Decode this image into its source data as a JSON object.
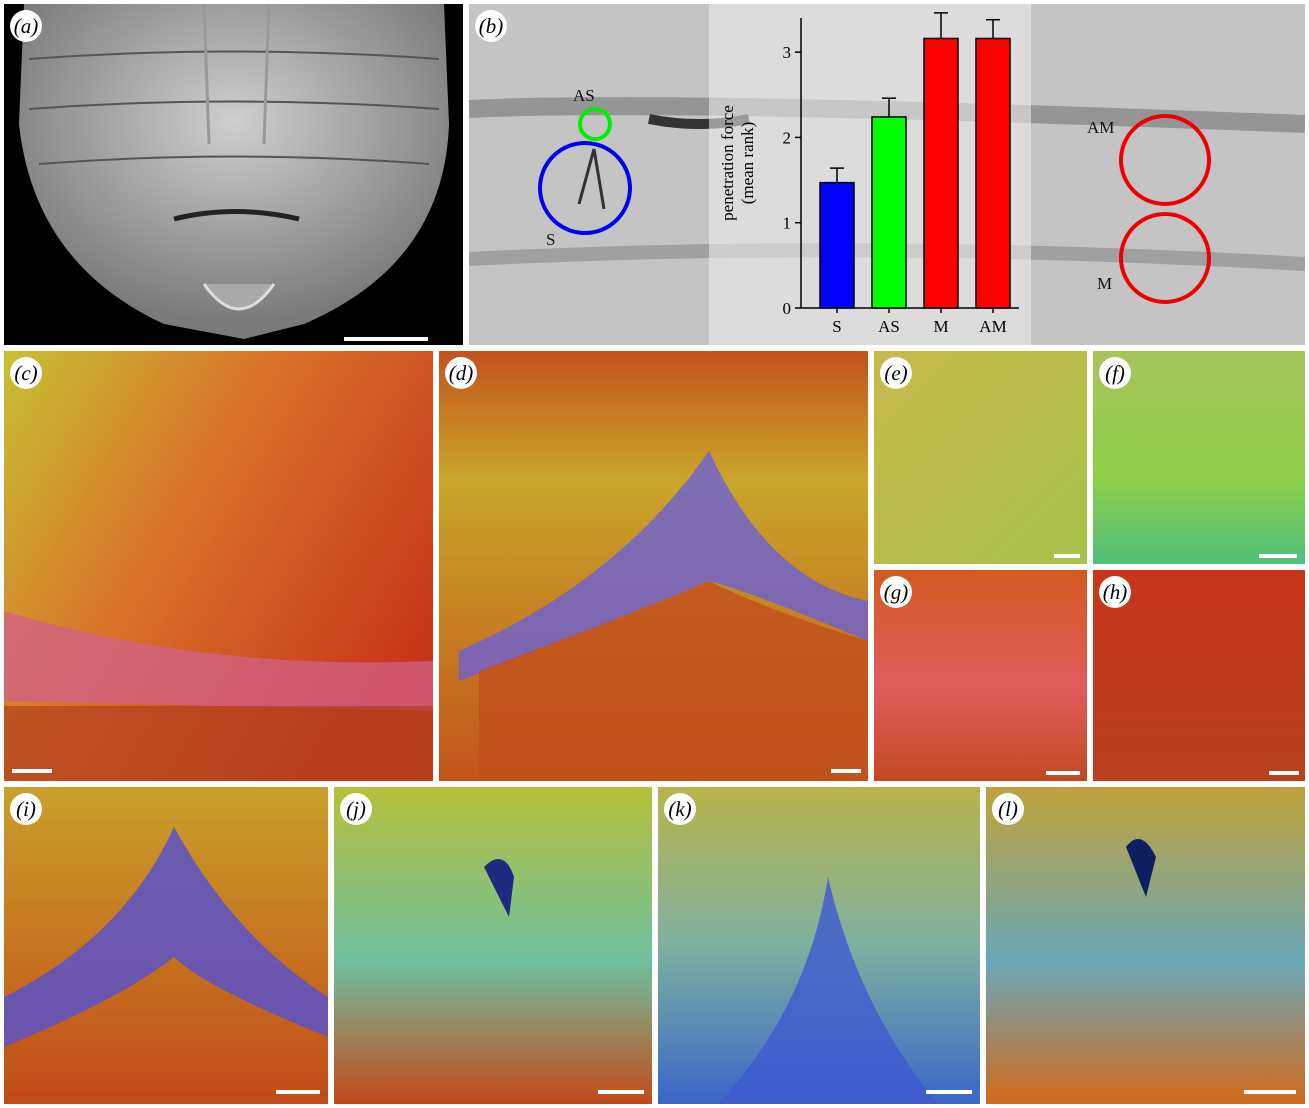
{
  "panels": {
    "a": {
      "label": "(a)"
    },
    "b": {
      "label": "(b)"
    },
    "c": {
      "label": "(c)"
    },
    "d": {
      "label": "(d)"
    },
    "e": {
      "label": "(e)"
    },
    "f": {
      "label": "(f)"
    },
    "g": {
      "label": "(g)"
    },
    "h": {
      "label": "(h)"
    },
    "i": {
      "label": "(i)"
    },
    "j": {
      "label": "(j)"
    },
    "k": {
      "label": "(k)"
    },
    "l": {
      "label": "(l)"
    }
  },
  "annotations": {
    "AS": "AS",
    "S": "S",
    "AM": "AM",
    "M": "M"
  },
  "colors": {
    "S": "#0000ff",
    "AS": "#00ff00",
    "M": "#ff0000",
    "AM": "#ff0000"
  },
  "chart_data": {
    "type": "bar",
    "categories": [
      "S",
      "AS",
      "M",
      "AM"
    ],
    "values": [
      1.47,
      2.24,
      3.16,
      3.16
    ],
    "errors": [
      0.17,
      0.22,
      0.3,
      0.22
    ],
    "colors": [
      "#0000ff",
      "#00ff00",
      "#ff0000",
      "#ff0000"
    ],
    "ylabel_line1": "penetration force",
    "ylabel_line2": "(mean rank)",
    "ylim": [
      0,
      3.4
    ],
    "yticks": [
      "0",
      "1",
      "2",
      "3"
    ]
  }
}
